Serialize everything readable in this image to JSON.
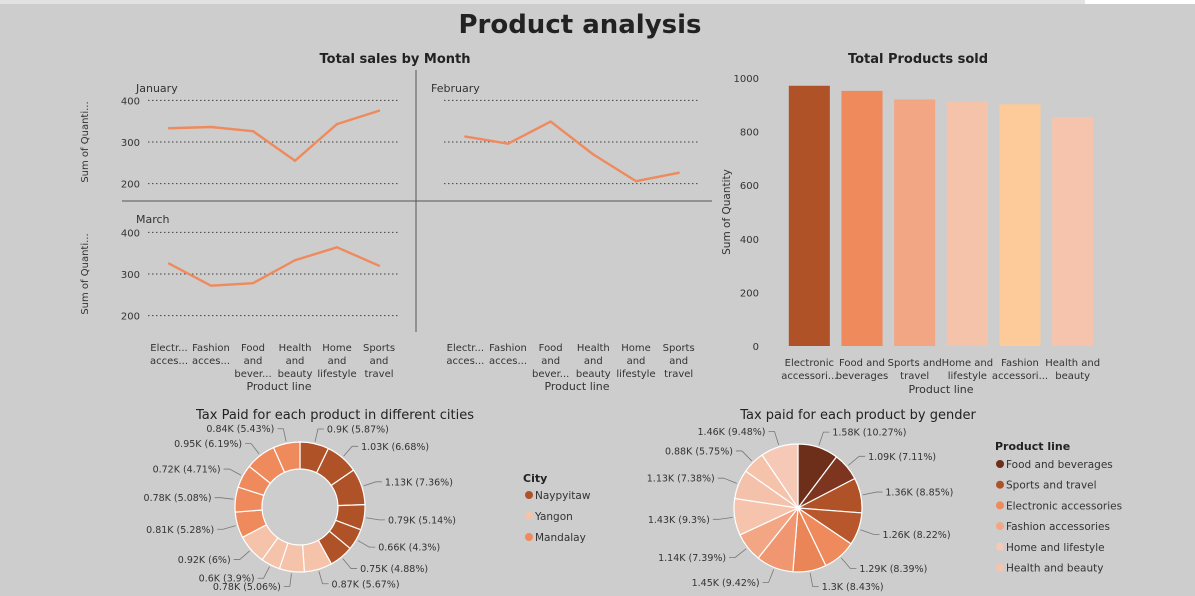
{
  "page_title": "Product analysis",
  "colors": {
    "line": "#ee8a5c",
    "bars": [
      "#b05228",
      "#ee8a5c",
      "#f3a684",
      "#f5c2aa",
      "#fccb99",
      "#f6c4ad"
    ],
    "city": [
      "#b05228",
      "#f5c2aa",
      "#ee8a5c"
    ],
    "gender_legend": [
      "#6e2f1a",
      "#b05228",
      "#ee8a5c",
      "#f3a684",
      "#f6c8b6",
      "#f6c4ad"
    ]
  },
  "chart_data": [
    {
      "type": "line",
      "title": "Total sales by Month",
      "ylabel": "Sum of Quanti...",
      "xlabel": "Product line",
      "ylim": [
        180,
        420
      ],
      "yticks": [
        200,
        300,
        400
      ],
      "categories": [
        "Electr... acces...",
        "Fashion acces...",
        "Food and bever...",
        "Health and beauty",
        "Home and lifestyle",
        "Sports and travel"
      ],
      "series": [
        {
          "name": "January",
          "values": [
            333,
            336,
            326,
            255,
            343,
            375
          ]
        },
        {
          "name": "February",
          "values": [
            313,
            296,
            349,
            270,
            206,
            226
          ]
        },
        {
          "name": "March",
          "values": [
            325,
            272,
            278,
            333,
            364,
            320
          ]
        }
      ]
    },
    {
      "type": "bar",
      "title": "Total Products sold",
      "ylabel": "Sum of Quantity",
      "xlabel": "Product line",
      "ylim": [
        0,
        1000
      ],
      "yticks": [
        0,
        200,
        400,
        600,
        800,
        1000
      ],
      "categories": [
        "Electronic accessori...",
        "Food and beverages",
        "Sports and travel",
        "Home and lifestyle",
        "Fashion accessori...",
        "Health and beauty"
      ],
      "values": [
        971,
        952,
        920,
        911,
        902,
        854
      ]
    },
    {
      "type": "pie",
      "title": "Tax Paid for each product in different cities",
      "legend_title": "City",
      "legend": [
        "Naypyitaw",
        "Yangon",
        "Mandalay"
      ],
      "slices": [
        {
          "group": 0,
          "value": 5.87,
          "label": "0.9K (5.87%)"
        },
        {
          "group": 0,
          "value": 6.68,
          "label": "1.03K (6.68%)"
        },
        {
          "group": 0,
          "value": 7.36,
          "label": "1.13K (7.36%)"
        },
        {
          "group": 0,
          "value": 5.14,
          "label": "0.79K (5.14%)"
        },
        {
          "group": 0,
          "value": 4.3,
          "label": "0.66K (4.3%)"
        },
        {
          "group": 0,
          "value": 4.88,
          "label": "0.75K (4.88%)"
        },
        {
          "group": 1,
          "value": 5.67,
          "label": "0.87K (5.67%)"
        },
        {
          "group": 1,
          "value": 5.06,
          "label": "0.78K (5.06%)"
        },
        {
          "group": 1,
          "value": 3.9,
          "label": "0.6K (3.9%)"
        },
        {
          "group": 1,
          "value": 6.0,
          "label": "0.92K (6%)"
        },
        {
          "group": 2,
          "value": 5.28,
          "label": "0.81K (5.28%)"
        },
        {
          "group": 2,
          "value": 5.08,
          "label": "0.78K (5.08%)"
        },
        {
          "group": 2,
          "value": 4.71,
          "label": "0.72K (4.71%)"
        },
        {
          "group": 2,
          "value": 6.19,
          "label": "0.95K (6.19%)"
        },
        {
          "group": 2,
          "value": 5.43,
          "label": "0.84K (5.43%)"
        }
      ]
    },
    {
      "type": "pie",
      "title": "Tax paid for each product by gender",
      "legend_title": "Product line",
      "legend": [
        "Food and beverages",
        "Sports and travel",
        "Electronic accessories",
        "Fashion accessories",
        "Home and lifestyle",
        "Health and beauty"
      ],
      "slices": [
        {
          "color": "#6e2f1a",
          "value": 10.27,
          "label": "1.58K (10.27%)"
        },
        {
          "color": "#7e3520",
          "value": 7.11,
          "label": "1.09K (7.11%)"
        },
        {
          "color": "#b05228",
          "value": 8.85,
          "label": "1.36K (8.85%)"
        },
        {
          "color": "#b8572c",
          "value": 8.22,
          "label": "1.26K (8.22%)"
        },
        {
          "color": "#ee8a5c",
          "value": 8.39,
          "label": "1.29K (8.39%)"
        },
        {
          "color": "#ea8558",
          "value": 8.43,
          "label": "1.3K (8.43%)"
        },
        {
          "color": "#f09670",
          "value": 9.42,
          "label": "1.45K (9.42%)"
        },
        {
          "color": "#f3a684",
          "value": 7.39,
          "label": "1.14K (7.39%)"
        },
        {
          "color": "#f6c4ad",
          "value": 9.3,
          "label": "1.43K (9.3%)"
        },
        {
          "color": "#f4c1ab",
          "value": 7.38,
          "label": "1.13K (7.38%)"
        },
        {
          "color": "#f5c2aa",
          "value": 5.75,
          "label": "0.88K (5.75%)"
        },
        {
          "color": "#f6c8b6",
          "value": 9.48,
          "label": "1.46K (9.48%)"
        }
      ]
    }
  ]
}
